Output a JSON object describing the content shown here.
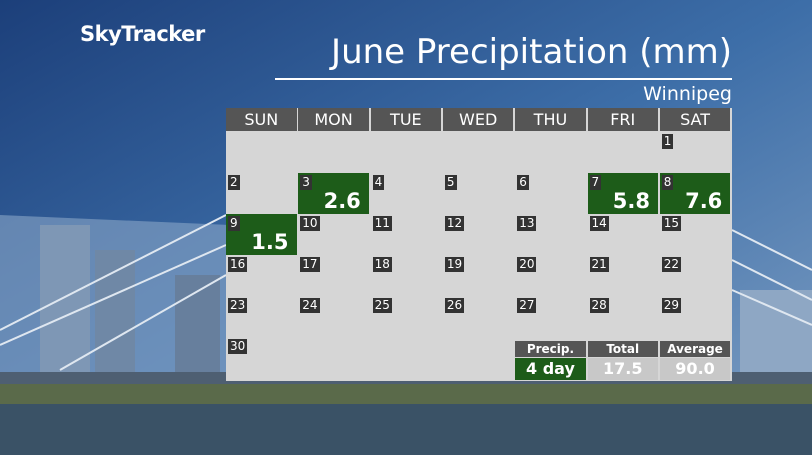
{
  "header": {
    "brand": "SkyTracker",
    "title": "June Precipitation (mm)",
    "location": "Winnipeg"
  },
  "calendar": {
    "weekdays": [
      "SUN",
      "MON",
      "TUE",
      "WED",
      "THU",
      "FRI",
      "SAT"
    ],
    "weeks": [
      [
        null,
        null,
        null,
        null,
        null,
        null,
        {
          "day": "1"
        }
      ],
      [
        {
          "day": "2"
        },
        {
          "day": "3",
          "precip": "2.6"
        },
        {
          "day": "4"
        },
        {
          "day": "5"
        },
        {
          "day": "6"
        },
        {
          "day": "7",
          "precip": "5.8"
        },
        {
          "day": "8",
          "precip": "7.6"
        }
      ],
      [
        {
          "day": "9",
          "precip": "1.5"
        },
        {
          "day": "10"
        },
        {
          "day": "11"
        },
        {
          "day": "12"
        },
        {
          "day": "13"
        },
        {
          "day": "14"
        },
        {
          "day": "15"
        }
      ],
      [
        {
          "day": "16"
        },
        {
          "day": "17"
        },
        {
          "day": "18"
        },
        {
          "day": "19"
        },
        {
          "day": "20"
        },
        {
          "day": "21"
        },
        {
          "day": "22"
        }
      ],
      [
        {
          "day": "23"
        },
        {
          "day": "24"
        },
        {
          "day": "25"
        },
        {
          "day": "26"
        },
        {
          "day": "27"
        },
        {
          "day": "28"
        },
        {
          "day": "29"
        }
      ],
      [
        {
          "day": "30"
        },
        null,
        null,
        null,
        null,
        null,
        null
      ]
    ]
  },
  "summary": {
    "labels": [
      "Precip.",
      "Total",
      "Average"
    ],
    "values": [
      "4 day",
      "17.5",
      "90.0"
    ]
  }
}
